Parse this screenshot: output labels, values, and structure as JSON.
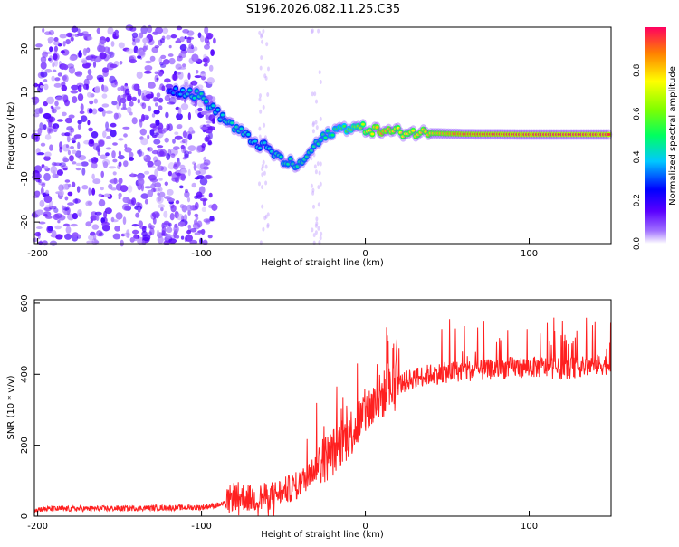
{
  "title": "S196.2026.082.11.25.C35",
  "chart_data": [
    {
      "type": "heatmap",
      "xlabel": "Height of straight line (km)",
      "ylabel": "Frequency (Hz)",
      "xlim": [
        -202,
        150
      ],
      "ylim": [
        -25,
        25
      ],
      "xticks": [
        -200,
        -100,
        0,
        100
      ],
      "yticks": [
        20,
        10,
        0,
        -10,
        -20
      ],
      "colorbar": {
        "label": "Normalized spectral amplitude",
        "range": [
          0.0,
          1.0
        ],
        "ticks": [
          "0.0",
          "0.2",
          "0.4",
          "0.6",
          "0.8"
        ],
        "tick_values": [
          0.0,
          0.2,
          0.4,
          0.6,
          0.8
        ]
      },
      "noise_region": {
        "x_range": [
          -202,
          -92
        ],
        "f_range": [
          -25,
          25
        ],
        "amplitude": 0.15
      },
      "ridge": {
        "description": "dominant frequency track vs height",
        "points": [
          {
            "x": -120,
            "f": 11,
            "a": 0.3
          },
          {
            "x": -110,
            "f": 10,
            "a": 0.4
          },
          {
            "x": -100,
            "f": 9,
            "a": 0.45
          },
          {
            "x": -90,
            "f": 5,
            "a": 0.4
          },
          {
            "x": -80,
            "f": 2,
            "a": 0.45
          },
          {
            "x": -70,
            "f": -1,
            "a": 0.4
          },
          {
            "x": -60,
            "f": -3,
            "a": 0.4
          },
          {
            "x": -50,
            "f": -6,
            "a": 0.45
          },
          {
            "x": -40,
            "f": -7,
            "a": 0.45
          },
          {
            "x": -30,
            "f": -2,
            "a": 0.45
          },
          {
            "x": -20,
            "f": 1,
            "a": 0.5
          },
          {
            "x": -10,
            "f": 2,
            "a": 0.55
          },
          {
            "x": 0,
            "f": 1.5,
            "a": 0.7
          },
          {
            "x": 10,
            "f": 1,
            "a": 0.85
          },
          {
            "x": 20,
            "f": 0.8,
            "a": 0.75
          },
          {
            "x": 40,
            "f": 0.5,
            "a": 0.8
          },
          {
            "x": 60,
            "f": 0.3,
            "a": 0.9
          },
          {
            "x": 100,
            "f": 0.2,
            "a": 0.95
          },
          {
            "x": 150,
            "f": 0.2,
            "a": 0.95
          }
        ]
      }
    },
    {
      "type": "line",
      "xlabel": "Height of straight line (km)",
      "ylabel": "SNR (10 * v/v)",
      "xlim": [
        -202,
        150
      ],
      "ylim": [
        0,
        610
      ],
      "xticks": [
        -200,
        -100,
        0,
        100
      ],
      "yticks": [
        0,
        200,
        400,
        600
      ],
      "series": [
        {
          "name": "SNR",
          "color": "#ff2020",
          "envelope_x": [
            -202,
            -150,
            -100,
            -85,
            -80,
            -70,
            -60,
            -50,
            -40,
            -30,
            -20,
            -10,
            0,
            10,
            20,
            30,
            40,
            50,
            60,
            70,
            80,
            90,
            100,
            110,
            120,
            130,
            140,
            150
          ],
          "envelope_y": [
            20,
            22,
            25,
            35,
            60,
            50,
            55,
            70,
            90,
            140,
            180,
            230,
            290,
            340,
            370,
            390,
            400,
            405,
            410,
            410,
            415,
            420,
            420,
            420,
            415,
            420,
            425,
            430
          ]
        }
      ]
    }
  ]
}
